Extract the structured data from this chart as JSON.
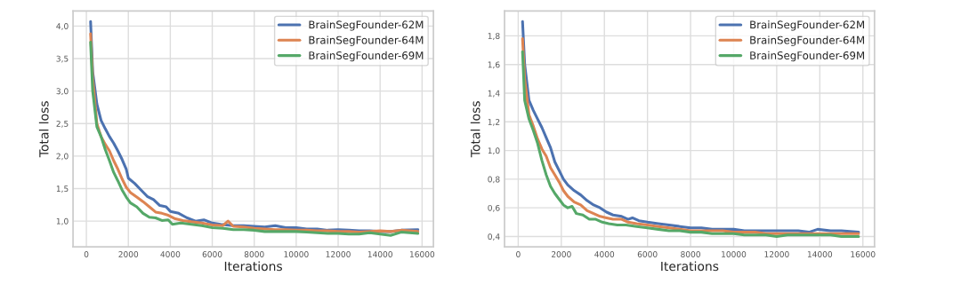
{
  "chart_data": [
    {
      "type": "line",
      "xlabel": "Iterations",
      "ylabel": "Total loss",
      "xlim": [
        -636,
        16540
      ],
      "ylim": [
        0.605,
        4.23
      ],
      "xticks": [
        0,
        2000,
        4000,
        6000,
        8000,
        10000,
        12000,
        14000,
        16000
      ],
      "yticks": [
        {
          "value": 1.0,
          "label": "1,0"
        },
        {
          "value": 1.5,
          "label": "1,5"
        },
        {
          "value": 2.0,
          "label": "2,0"
        },
        {
          "value": 2.5,
          "label": "2,5"
        },
        {
          "value": 3.0,
          "label": "3,0"
        },
        {
          "value": 3.5,
          "label": "3,5"
        },
        {
          "value": 4.0,
          "label": "4,0"
        }
      ],
      "grid": true,
      "legend": "top right",
      "line_style": "solid",
      "marker": "none",
      "series": [
        {
          "name": "BrainSegFounder-62M",
          "color": "#4c72b0",
          "x": [
            200,
            300,
            500,
            700,
            900,
            1100,
            1300,
            1500,
            1700,
            1900,
            2000,
            2300,
            2600,
            2900,
            3200,
            3500,
            3800,
            4000,
            4400,
            4800,
            5200,
            5600,
            6000,
            6400,
            7000,
            7500,
            8000,
            8500,
            9000,
            9500,
            10000,
            10500,
            11000,
            11500,
            12000,
            12500,
            13000,
            13500,
            14000,
            14500,
            15000,
            15800
          ],
          "values": [
            4.07,
            3.3,
            2.8,
            2.55,
            2.42,
            2.3,
            2.2,
            2.08,
            1.95,
            1.8,
            1.66,
            1.58,
            1.48,
            1.38,
            1.33,
            1.24,
            1.22,
            1.15,
            1.12,
            1.05,
            1.0,
            1.02,
            0.97,
            0.95,
            0.93,
            0.93,
            0.92,
            0.91,
            0.93,
            0.9,
            0.9,
            0.88,
            0.88,
            0.86,
            0.87,
            0.86,
            0.85,
            0.85,
            0.84,
            0.84,
            0.86,
            0.87
          ]
        },
        {
          "name": "BrainSegFounder-64M",
          "color": "#dd8452",
          "x": [
            200,
            300,
            500,
            700,
            900,
            1100,
            1300,
            1500,
            1700,
            1900,
            2100,
            2400,
            2700,
            3000,
            3300,
            3600,
            3900,
            4200,
            4600,
            5000,
            5500,
            6000,
            6500,
            6750,
            7000,
            7500,
            8000,
            8500,
            9000,
            9500,
            10000,
            10500,
            11000,
            11500,
            12000,
            12500,
            13000,
            13500,
            14000,
            14500,
            15000,
            15800
          ],
          "values": [
            3.88,
            3.2,
            2.5,
            2.3,
            2.18,
            2.08,
            1.93,
            1.8,
            1.65,
            1.52,
            1.44,
            1.37,
            1.3,
            1.22,
            1.14,
            1.12,
            1.09,
            1.04,
            1.01,
            0.99,
            0.97,
            0.94,
            0.93,
            1.0,
            0.92,
            0.91,
            0.89,
            0.88,
            0.87,
            0.87,
            0.86,
            0.86,
            0.85,
            0.85,
            0.84,
            0.84,
            0.83,
            0.84,
            0.85,
            0.84,
            0.86,
            0.84
          ]
        },
        {
          "name": "BrainSegFounder-69M",
          "color": "#55a868",
          "x": [
            200,
            300,
            500,
            700,
            900,
            1100,
            1300,
            1500,
            1700,
            1900,
            2100,
            2400,
            2700,
            3000,
            3300,
            3600,
            3900,
            4100,
            4500,
            5000,
            5500,
            6000,
            6500,
            7000,
            7500,
            8000,
            8500,
            9000,
            9500,
            10000,
            10500,
            11000,
            11500,
            12000,
            12500,
            13000,
            13500,
            14000,
            14500,
            15000,
            15800
          ],
          "values": [
            3.75,
            3.0,
            2.45,
            2.3,
            2.1,
            1.93,
            1.75,
            1.62,
            1.48,
            1.37,
            1.28,
            1.22,
            1.12,
            1.06,
            1.05,
            1.01,
            1.02,
            0.95,
            0.97,
            0.95,
            0.93,
            0.9,
            0.89,
            0.87,
            0.87,
            0.86,
            0.84,
            0.84,
            0.84,
            0.84,
            0.83,
            0.82,
            0.81,
            0.81,
            0.8,
            0.8,
            0.82,
            0.8,
            0.78,
            0.83,
            0.81
          ]
        }
      ]
    },
    {
      "type": "line",
      "xlabel": "Iterations",
      "ylabel": "Total loss",
      "xlim": [
        -636,
        16540
      ],
      "ylim": [
        0.328,
        1.973
      ],
      "xticks": [
        0,
        2000,
        4000,
        6000,
        8000,
        10000,
        12000,
        14000,
        16000
      ],
      "yticks": [
        {
          "value": 0.4,
          "label": "0,4"
        },
        {
          "value": 0.6,
          "label": "0,6"
        },
        {
          "value": 0.8,
          "label": "0,8"
        },
        {
          "value": 1.0,
          "label": "1,0"
        },
        {
          "value": 1.2,
          "label": "1,2"
        },
        {
          "value": 1.4,
          "label": "1,4"
        },
        {
          "value": 1.6,
          "label": "1,6"
        },
        {
          "value": 1.8,
          "label": "1,8"
        }
      ],
      "grid": true,
      "legend": "top right",
      "line_style": "solid",
      "marker": "none",
      "series": [
        {
          "name": "BrainSegFounder-62M",
          "color": "#4c72b0",
          "x": [
            200,
            300,
            500,
            700,
            900,
            1100,
            1300,
            1500,
            1700,
            1900,
            2100,
            2300,
            2600,
            2900,
            3200,
            3500,
            3800,
            4100,
            4400,
            4800,
            5100,
            5300,
            5600,
            6000,
            6500,
            7000,
            7500,
            8000,
            8500,
            9000,
            9500,
            10000,
            10500,
            11000,
            11500,
            12000,
            12500,
            13000,
            13500,
            13900,
            14500,
            15000,
            15800
          ],
          "values": [
            1.9,
            1.6,
            1.35,
            1.28,
            1.22,
            1.16,
            1.09,
            1.02,
            0.92,
            0.86,
            0.8,
            0.76,
            0.72,
            0.69,
            0.65,
            0.62,
            0.6,
            0.57,
            0.55,
            0.54,
            0.52,
            0.53,
            0.51,
            0.5,
            0.49,
            0.48,
            0.47,
            0.46,
            0.46,
            0.45,
            0.45,
            0.45,
            0.44,
            0.44,
            0.44,
            0.44,
            0.44,
            0.44,
            0.43,
            0.45,
            0.44,
            0.44,
            0.43
          ]
        },
        {
          "name": "BrainSegFounder-64M",
          "color": "#dd8452",
          "x": [
            200,
            300,
            500,
            700,
            900,
            1100,
            1300,
            1500,
            1700,
            1900,
            2100,
            2300,
            2600,
            2900,
            3200,
            3500,
            3800,
            4100,
            4400,
            4800,
            5100,
            5500,
            6000,
            6500,
            7000,
            7500,
            8000,
            8500,
            9000,
            9500,
            10000,
            10500,
            11000,
            11500,
            12000,
            12500,
            13000,
            13500,
            14000,
            14500,
            15000,
            15800
          ],
          "values": [
            1.78,
            1.5,
            1.25,
            1.17,
            1.08,
            1.01,
            0.96,
            0.88,
            0.83,
            0.78,
            0.72,
            0.68,
            0.64,
            0.62,
            0.58,
            0.56,
            0.54,
            0.53,
            0.52,
            0.52,
            0.5,
            0.49,
            0.48,
            0.47,
            0.46,
            0.45,
            0.44,
            0.44,
            0.44,
            0.44,
            0.43,
            0.43,
            0.43,
            0.42,
            0.42,
            0.42,
            0.42,
            0.42,
            0.42,
            0.42,
            0.42,
            0.42
          ]
        },
        {
          "name": "BrainSegFounder-69M",
          "color": "#55a868",
          "x": [
            200,
            300,
            500,
            700,
            900,
            1100,
            1300,
            1500,
            1700,
            1900,
            2100,
            2300,
            2500,
            2700,
            3000,
            3300,
            3600,
            3900,
            4200,
            4600,
            5000,
            5500,
            6000,
            6500,
            7000,
            7500,
            8000,
            8500,
            9000,
            9500,
            10000,
            10500,
            11000,
            11500,
            12000,
            12500,
            13000,
            13500,
            14000,
            14500,
            15000,
            15800
          ],
          "values": [
            1.69,
            1.35,
            1.22,
            1.14,
            1.05,
            0.93,
            0.83,
            0.75,
            0.7,
            0.66,
            0.62,
            0.6,
            0.61,
            0.56,
            0.55,
            0.52,
            0.52,
            0.5,
            0.49,
            0.48,
            0.48,
            0.47,
            0.46,
            0.45,
            0.44,
            0.44,
            0.43,
            0.43,
            0.42,
            0.42,
            0.42,
            0.41,
            0.41,
            0.41,
            0.4,
            0.41,
            0.41,
            0.41,
            0.41,
            0.41,
            0.4,
            0.4
          ]
        }
      ]
    }
  ]
}
